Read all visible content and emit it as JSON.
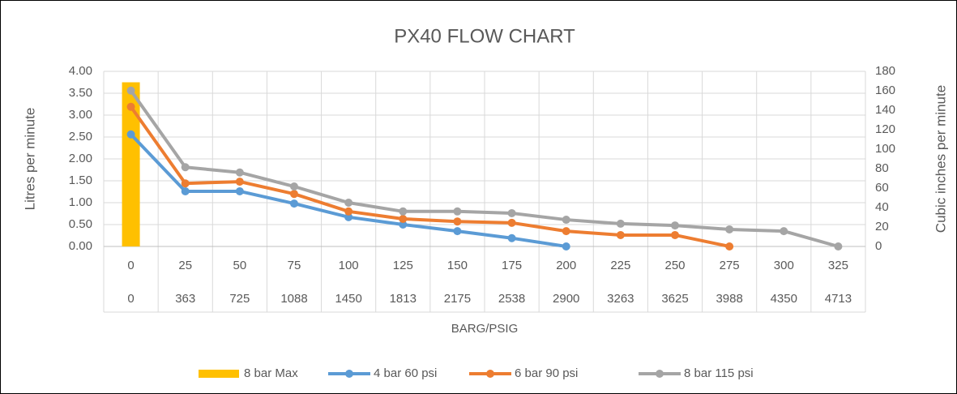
{
  "chart_data": {
    "type": "combo",
    "title": "PX40 FLOW CHART",
    "ylabel": "Litres per minute",
    "y2label": "Cubic inches per minute",
    "xlabel": "BARG/PSIG",
    "categories": [
      "0",
      "25",
      "50",
      "75",
      "100",
      "125",
      "150",
      "175",
      "200",
      "225",
      "250",
      "275",
      "300",
      "325"
    ],
    "categories_psig": [
      "0",
      "363",
      "725",
      "1088",
      "1450",
      "1813",
      "2175",
      "2538",
      "2900",
      "3263",
      "3625",
      "3988",
      "4350",
      "4713"
    ],
    "ylim": [
      0,
      4
    ],
    "yticks": [
      {
        "value": 0,
        "label": "0.00"
      },
      {
        "value": 0.5,
        "label": "0.50"
      },
      {
        "value": 1,
        "label": "1.00"
      },
      {
        "value": 1.5,
        "label": "1.50"
      },
      {
        "value": 2,
        "label": "2.00"
      },
      {
        "value": 2.5,
        "label": "2.50"
      },
      {
        "value": 3,
        "label": "3.00"
      },
      {
        "value": 3.5,
        "label": "3.50"
      },
      {
        "value": 4,
        "label": "4.00"
      }
    ],
    "y2lim": [
      0,
      180
    ],
    "y2ticks": [
      0,
      20,
      40,
      60,
      80,
      100,
      120,
      140,
      160,
      180
    ],
    "grid": true,
    "legend": "bottom",
    "series": [
      {
        "name": "8 bar Max",
        "type": "bar",
        "color": "#FFC000",
        "values": [
          3.75,
          null,
          null,
          null,
          null,
          null,
          null,
          null,
          null,
          null,
          null,
          null,
          null,
          null
        ]
      },
      {
        "name": "4 bar 60 psi",
        "type": "line",
        "color": "#5B9BD5",
        "values": [
          2.56,
          1.26,
          1.26,
          0.98,
          0.67,
          0.5,
          0.35,
          0.19,
          0,
          null,
          null,
          null,
          null,
          null
        ]
      },
      {
        "name": "6 bar 90 psi",
        "type": "line",
        "color": "#ED7D31",
        "values": [
          3.19,
          1.44,
          1.48,
          1.2,
          0.8,
          0.63,
          0.57,
          0.54,
          0.35,
          0.26,
          0.26,
          0,
          null,
          null
        ]
      },
      {
        "name": "8 bar 115 psi",
        "type": "line",
        "color": "#A5A5A5",
        "values": [
          3.56,
          1.81,
          1.69,
          1.37,
          1.0,
          0.8,
          0.8,
          0.76,
          0.61,
          0.52,
          0.48,
          0.39,
          0.35,
          0
        ]
      }
    ]
  }
}
